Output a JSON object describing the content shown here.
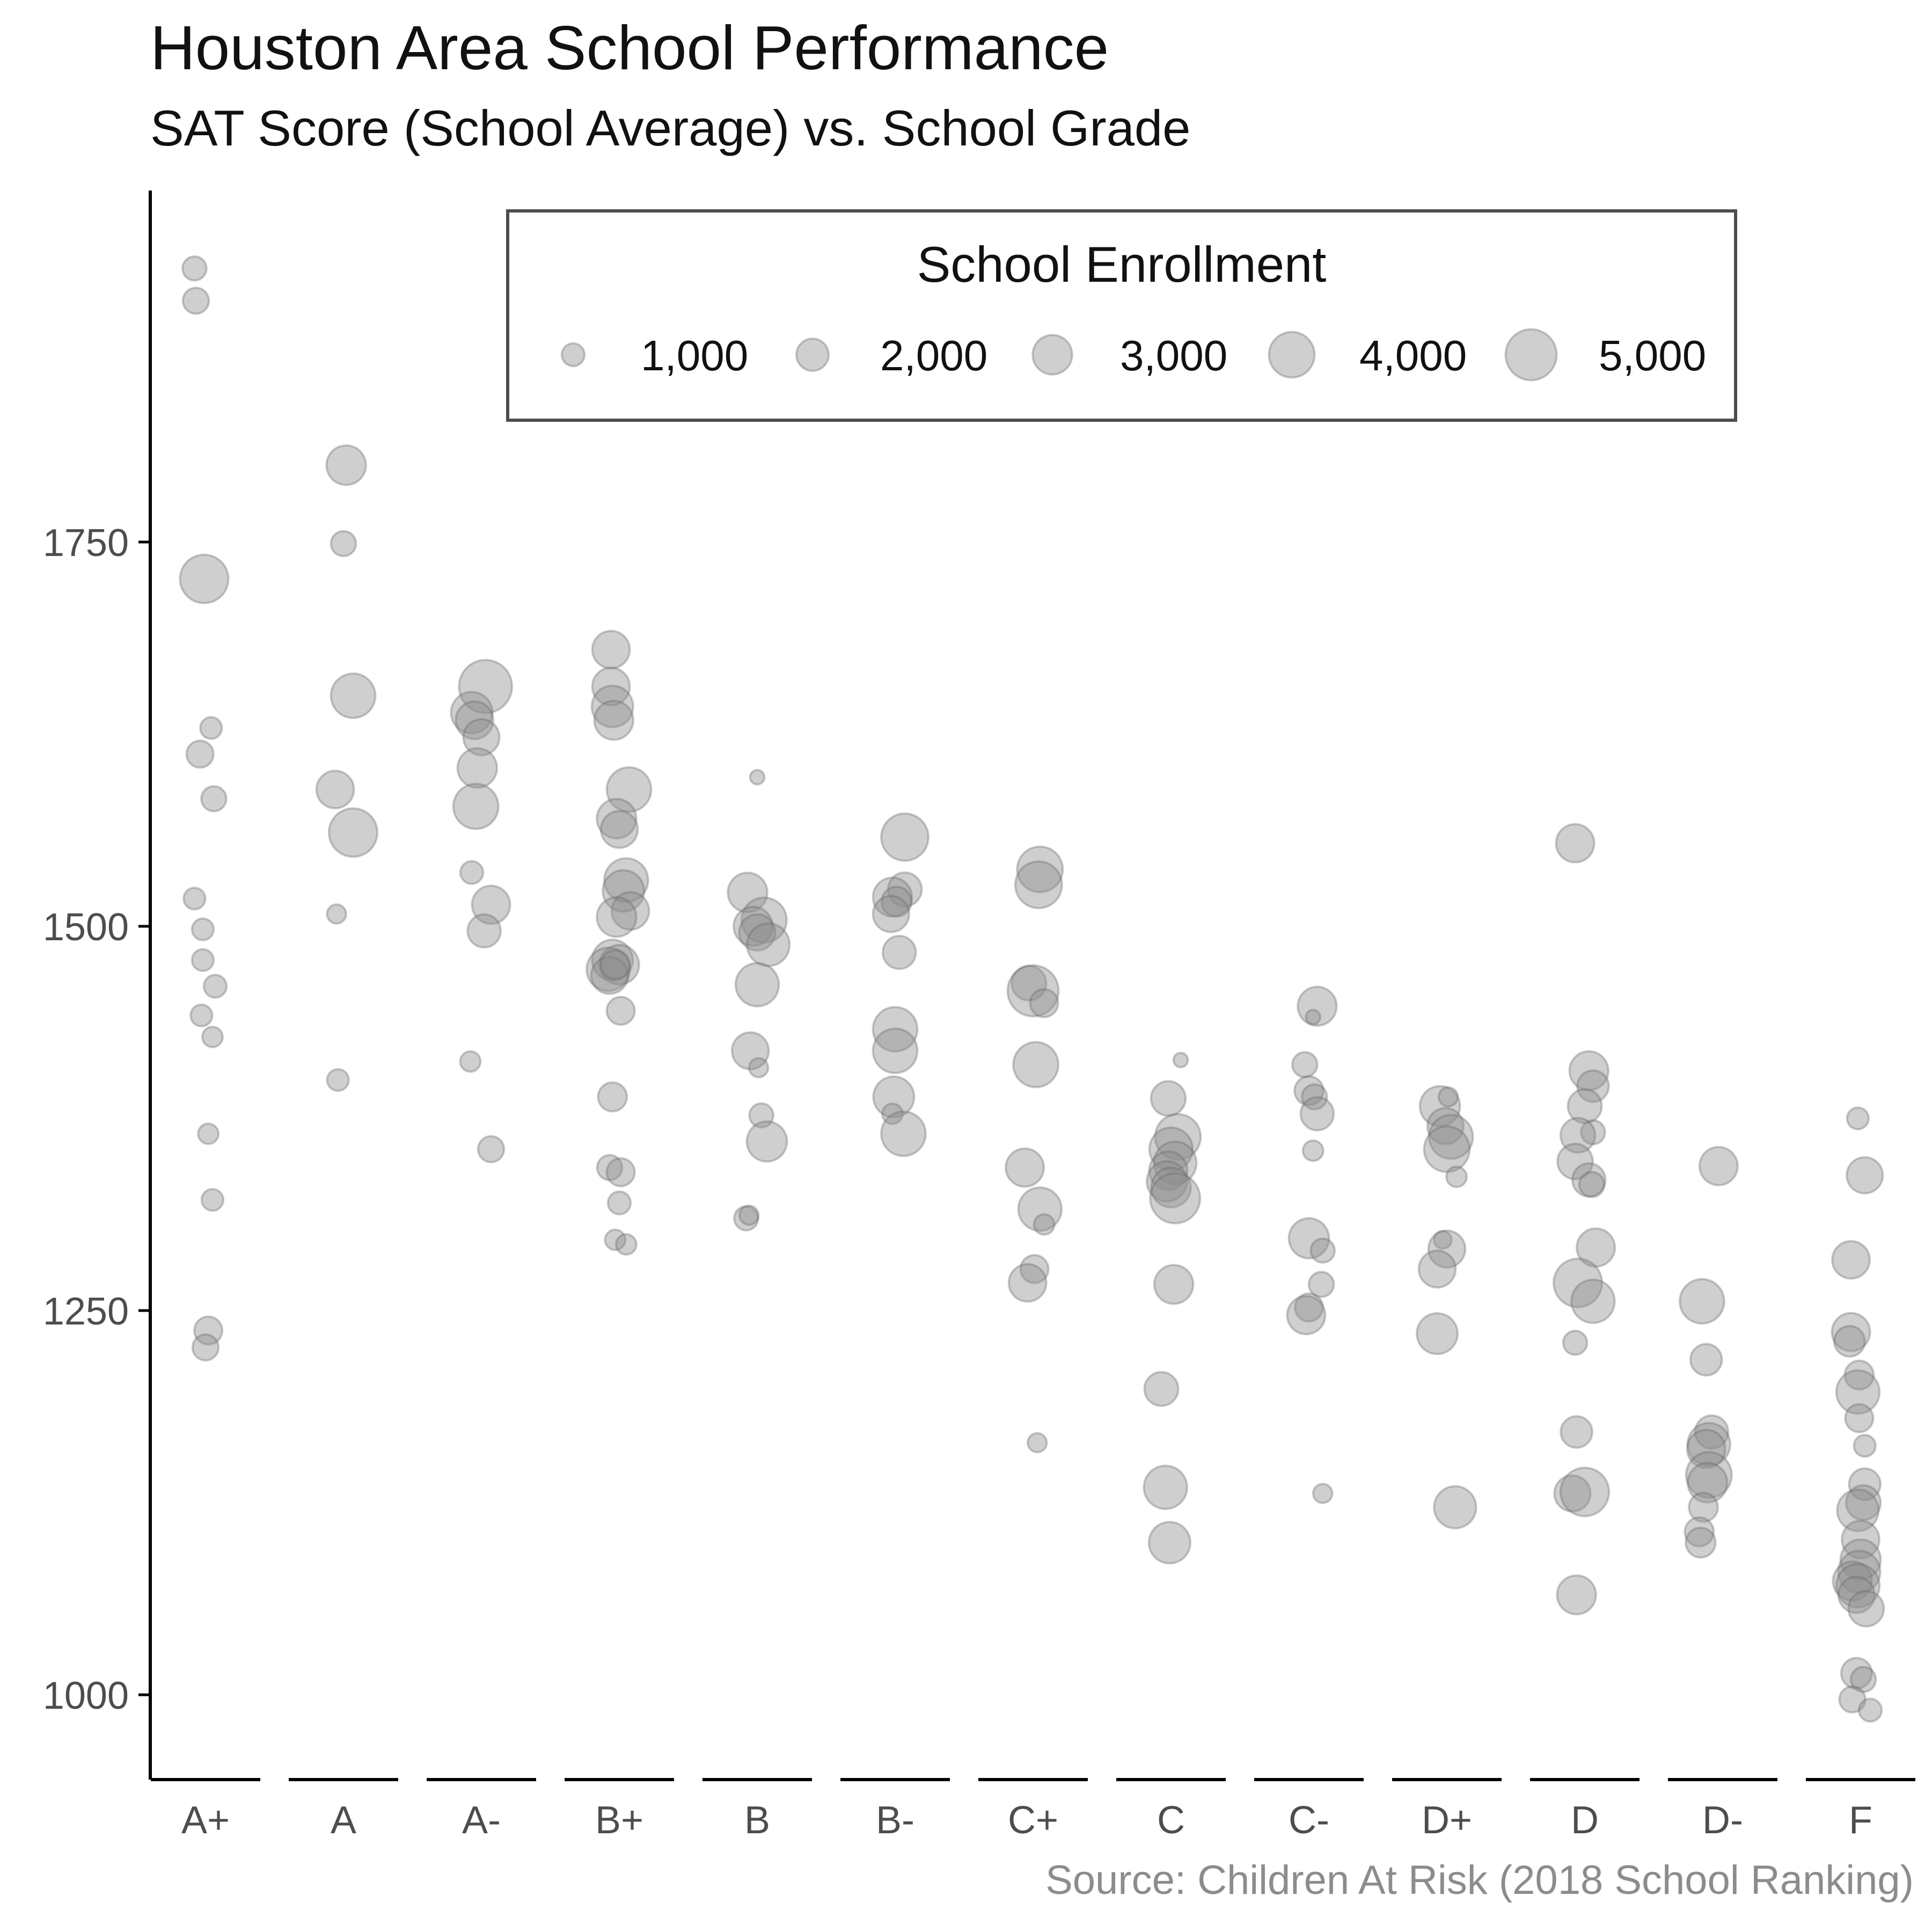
{
  "chart_data": {
    "type": "scatter",
    "title": "Houston Area School Performance",
    "subtitle": "SAT Score (School Average) vs. School Grade",
    "caption": "Source: Children At Risk (2018 School Ranking)",
    "xlabel": "",
    "ylabel": "",
    "categories": [
      "A+",
      "A",
      "A-",
      "B+",
      "B",
      "B-",
      "C+",
      "C",
      "C-",
      "D+",
      "D",
      "D-",
      "F"
    ],
    "y_ticks": [
      1000,
      1250,
      1500,
      1750
    ],
    "ylim": [
      948,
      1980
    ],
    "grid": false,
    "point_color": "#8c8c8c",
    "legend": {
      "title": "School Enrollment",
      "position": "top",
      "entries": [
        {
          "label": "1,000",
          "value": 1000
        },
        {
          "label": "2,000",
          "value": 2000
        },
        {
          "label": "3,000",
          "value": 3000
        },
        {
          "label": "4,000",
          "value": 4000
        },
        {
          "label": "5,000",
          "value": 5000
        }
      ]
    },
    "points": [
      {
        "grade": "A+",
        "x": -0.08,
        "y": 1928,
        "size": 1100
      },
      {
        "grade": "A+",
        "x": -0.07,
        "y": 1907,
        "size": 1300
      },
      {
        "grade": "A+",
        "x": -0.01,
        "y": 1726,
        "size": 4500
      },
      {
        "grade": "A+",
        "x": 0.04,
        "y": 1629,
        "size": 900
      },
      {
        "grade": "A+",
        "x": -0.04,
        "y": 1612,
        "size": 1400
      },
      {
        "grade": "A+",
        "x": 0.06,
        "y": 1583,
        "size": 1200
      },
      {
        "grade": "A+",
        "x": -0.08,
        "y": 1518,
        "size": 900
      },
      {
        "grade": "A+",
        "x": -0.02,
        "y": 1498,
        "size": 900
      },
      {
        "grade": "A+",
        "x": -0.02,
        "y": 1478,
        "size": 900
      },
      {
        "grade": "A+",
        "x": 0.07,
        "y": 1461,
        "size": 1000
      },
      {
        "grade": "A+",
        "x": -0.03,
        "y": 1442,
        "size": 900
      },
      {
        "grade": "A+",
        "x": 0.05,
        "y": 1428,
        "size": 800
      },
      {
        "grade": "A+",
        "x": 0.02,
        "y": 1365,
        "size": 800
      },
      {
        "grade": "A+",
        "x": 0.05,
        "y": 1322,
        "size": 900
      },
      {
        "grade": "A+",
        "x": 0.02,
        "y": 1237,
        "size": 1500
      },
      {
        "grade": "A+",
        "x": 0.0,
        "y": 1226,
        "size": 1300
      },
      {
        "grade": "A",
        "x": 0.02,
        "y": 1800,
        "size": 3000
      },
      {
        "grade": "A",
        "x": 0.0,
        "y": 1749,
        "size": 1200
      },
      {
        "grade": "A",
        "x": 0.07,
        "y": 1650,
        "size": 3800
      },
      {
        "grade": "A",
        "x": -0.06,
        "y": 1589,
        "size": 2700
      },
      {
        "grade": "A",
        "x": 0.07,
        "y": 1561,
        "size": 4500
      },
      {
        "grade": "A",
        "x": -0.05,
        "y": 1508,
        "size": 700
      },
      {
        "grade": "A",
        "x": -0.04,
        "y": 1400,
        "size": 900
      },
      {
        "grade": "A-",
        "x": 0.03,
        "y": 1656,
        "size": 5400
      },
      {
        "grade": "A-",
        "x": -0.07,
        "y": 1639,
        "size": 3300
      },
      {
        "grade": "A-",
        "x": -0.05,
        "y": 1634,
        "size": 2700
      },
      {
        "grade": "A-",
        "x": 0.0,
        "y": 1623,
        "size": 2500
      },
      {
        "grade": "A-",
        "x": -0.03,
        "y": 1603,
        "size": 3000
      },
      {
        "grade": "A-",
        "x": -0.04,
        "y": 1578,
        "size": 3900
      },
      {
        "grade": "A-",
        "x": -0.07,
        "y": 1535,
        "size": 1000
      },
      {
        "grade": "A-",
        "x": 0.07,
        "y": 1514,
        "size": 2800
      },
      {
        "grade": "A-",
        "x": 0.02,
        "y": 1497,
        "size": 2100
      },
      {
        "grade": "A-",
        "x": -0.08,
        "y": 1412,
        "size": 800
      },
      {
        "grade": "A-",
        "x": 0.07,
        "y": 1355,
        "size": 1300
      },
      {
        "grade": "B+",
        "x": -0.06,
        "y": 1680,
        "size": 2700
      },
      {
        "grade": "B+",
        "x": -0.06,
        "y": 1656,
        "size": 2700
      },
      {
        "grade": "B+",
        "x": -0.05,
        "y": 1643,
        "size": 3300
      },
      {
        "grade": "B+",
        "x": -0.04,
        "y": 1634,
        "size": 2900
      },
      {
        "grade": "B+",
        "x": 0.07,
        "y": 1589,
        "size": 3800
      },
      {
        "grade": "B+",
        "x": -0.02,
        "y": 1570,
        "size": 3000
      },
      {
        "grade": "B+",
        "x": 0.0,
        "y": 1563,
        "size": 2600
      },
      {
        "grade": "B+",
        "x": 0.05,
        "y": 1530,
        "size": 3700
      },
      {
        "grade": "B+",
        "x": 0.03,
        "y": 1523,
        "size": 3300
      },
      {
        "grade": "B+",
        "x": 0.08,
        "y": 1510,
        "size": 2700
      },
      {
        "grade": "B+",
        "x": -0.02,
        "y": 1506,
        "size": 3000
      },
      {
        "grade": "B+",
        "x": -0.05,
        "y": 1478,
        "size": 3200
      },
      {
        "grade": "B+",
        "x": 0.0,
        "y": 1475,
        "size": 3000
      },
      {
        "grade": "B+",
        "x": -0.08,
        "y": 1472,
        "size": 3600
      },
      {
        "grade": "B+",
        "x": -0.07,
        "y": 1468,
        "size": 2600
      },
      {
        "grade": "B+",
        "x": -0.03,
        "y": 1475,
        "size": 1600
      },
      {
        "grade": "B+",
        "x": 0.01,
        "y": 1445,
        "size": 1500
      },
      {
        "grade": "B+",
        "x": -0.05,
        "y": 1389,
        "size": 1600
      },
      {
        "grade": "B+",
        "x": -0.07,
        "y": 1343,
        "size": 1200
      },
      {
        "grade": "B+",
        "x": 0.01,
        "y": 1340,
        "size": 1500
      },
      {
        "grade": "B+",
        "x": 0.0,
        "y": 1320,
        "size": 1000
      },
      {
        "grade": "B+",
        "x": -0.03,
        "y": 1296,
        "size": 800
      },
      {
        "grade": "B+",
        "x": 0.05,
        "y": 1293,
        "size": 800
      },
      {
        "grade": "B",
        "x": 0.0,
        "y": 1597,
        "size": 400
      },
      {
        "grade": "B",
        "x": -0.07,
        "y": 1522,
        "size": 3000
      },
      {
        "grade": "B",
        "x": 0.05,
        "y": 1504,
        "size": 3900
      },
      {
        "grade": "B",
        "x": -0.03,
        "y": 1500,
        "size": 2900
      },
      {
        "grade": "B",
        "x": 0.0,
        "y": 1496,
        "size": 2500
      },
      {
        "grade": "B",
        "x": 0.08,
        "y": 1488,
        "size": 3500
      },
      {
        "grade": "B",
        "x": 0.0,
        "y": 1462,
        "size": 3600
      },
      {
        "grade": "B",
        "x": -0.05,
        "y": 1419,
        "size": 2600
      },
      {
        "grade": "B",
        "x": 0.01,
        "y": 1408,
        "size": 700
      },
      {
        "grade": "B",
        "x": 0.03,
        "y": 1377,
        "size": 1100
      },
      {
        "grade": "B",
        "x": 0.07,
        "y": 1360,
        "size": 3100
      },
      {
        "grade": "B",
        "x": -0.08,
        "y": 1310,
        "size": 1100
      },
      {
        "grade": "B",
        "x": -0.06,
        "y": 1312,
        "size": 700
      },
      {
        "grade": "B-",
        "x": 0.07,
        "y": 1558,
        "size": 4300
      },
      {
        "grade": "B-",
        "x": 0.07,
        "y": 1524,
        "size": 2200
      },
      {
        "grade": "B-",
        "x": -0.02,
        "y": 1519,
        "size": 2900
      },
      {
        "grade": "B-",
        "x": 0.01,
        "y": 1516,
        "size": 1700
      },
      {
        "grade": "B-",
        "x": -0.03,
        "y": 1508,
        "size": 2500
      },
      {
        "grade": "B-",
        "x": 0.03,
        "y": 1483,
        "size": 2100
      },
      {
        "grade": "B-",
        "x": 0.0,
        "y": 1433,
        "size": 3800
      },
      {
        "grade": "B-",
        "x": 0.0,
        "y": 1419,
        "size": 3800
      },
      {
        "grade": "B-",
        "x": -0.01,
        "y": 1389,
        "size": 3200
      },
      {
        "grade": "B-",
        "x": -0.02,
        "y": 1378,
        "size": 800
      },
      {
        "grade": "B-",
        "x": 0.06,
        "y": 1365,
        "size": 3800
      },
      {
        "grade": "C+",
        "x": 0.05,
        "y": 1537,
        "size": 4000
      },
      {
        "grade": "C+",
        "x": 0.04,
        "y": 1527,
        "size": 4200
      },
      {
        "grade": "C+",
        "x": -0.03,
        "y": 1463,
        "size": 2300
      },
      {
        "grade": "C+",
        "x": 0.0,
        "y": 1458,
        "size": 5000
      },
      {
        "grade": "C+",
        "x": 0.08,
        "y": 1450,
        "size": 1500
      },
      {
        "grade": "C+",
        "x": 0.02,
        "y": 1410,
        "size": 3900
      },
      {
        "grade": "C+",
        "x": -0.06,
        "y": 1343,
        "size": 2800
      },
      {
        "grade": "C+",
        "x": 0.05,
        "y": 1316,
        "size": 3600
      },
      {
        "grade": "C+",
        "x": 0.08,
        "y": 1306,
        "size": 800
      },
      {
        "grade": "C+",
        "x": 0.01,
        "y": 1277,
        "size": 1500
      },
      {
        "grade": "C+",
        "x": -0.04,
        "y": 1268,
        "size": 2700
      },
      {
        "grade": "C+",
        "x": 0.03,
        "y": 1164,
        "size": 700
      },
      {
        "grade": "C",
        "x": 0.07,
        "y": 1413,
        "size": 400
      },
      {
        "grade": "C",
        "x": -0.02,
        "y": 1388,
        "size": 2300
      },
      {
        "grade": "C",
        "x": 0.05,
        "y": 1363,
        "size": 4000
      },
      {
        "grade": "C",
        "x": 0.0,
        "y": 1355,
        "size": 3600
      },
      {
        "grade": "C",
        "x": 0.03,
        "y": 1346,
        "size": 3500
      },
      {
        "grade": "C",
        "x": -0.02,
        "y": 1341,
        "size": 2800
      },
      {
        "grade": "C",
        "x": -0.03,
        "y": 1334,
        "size": 3100
      },
      {
        "grade": "C",
        "x": 0.0,
        "y": 1330,
        "size": 3000
      },
      {
        "grade": "C",
        "x": 0.03,
        "y": 1323,
        "size": 4800
      },
      {
        "grade": "C",
        "x": 0.02,
        "y": 1267,
        "size": 2900
      },
      {
        "grade": "C",
        "x": -0.07,
        "y": 1199,
        "size": 2200
      },
      {
        "grade": "C",
        "x": -0.04,
        "y": 1135,
        "size": 3600
      },
      {
        "grade": "C",
        "x": -0.01,
        "y": 1099,
        "size": 3300
      },
      {
        "grade": "C-",
        "x": 0.06,
        "y": 1448,
        "size": 2900
      },
      {
        "grade": "C-",
        "x": 0.03,
        "y": 1441,
        "size": 400
      },
      {
        "grade": "C-",
        "x": -0.03,
        "y": 1410,
        "size": 1200
      },
      {
        "grade": "C-",
        "x": 0.0,
        "y": 1393,
        "size": 1600
      },
      {
        "grade": "C-",
        "x": 0.04,
        "y": 1389,
        "size": 1200
      },
      {
        "grade": "C-",
        "x": 0.06,
        "y": 1378,
        "size": 2100
      },
      {
        "grade": "C-",
        "x": 0.03,
        "y": 1354,
        "size": 800
      },
      {
        "grade": "C-",
        "x": 0.0,
        "y": 1297,
        "size": 3100
      },
      {
        "grade": "C-",
        "x": 0.1,
        "y": 1289,
        "size": 1100
      },
      {
        "grade": "C-",
        "x": 0.09,
        "y": 1267,
        "size": 1200
      },
      {
        "grade": "C-",
        "x": 0.0,
        "y": 1252,
        "size": 1500
      },
      {
        "grade": "C-",
        "x": -0.02,
        "y": 1247,
        "size": 2800
      },
      {
        "grade": "C-",
        "x": 0.1,
        "y": 1131,
        "size": 700
      },
      {
        "grade": "D+",
        "x": -0.05,
        "y": 1383,
        "size": 3100
      },
      {
        "grade": "D+",
        "x": 0.01,
        "y": 1389,
        "size": 700
      },
      {
        "grade": "D+",
        "x": -0.01,
        "y": 1370,
        "size": 2500
      },
      {
        "grade": "D+",
        "x": 0.03,
        "y": 1363,
        "size": 3700
      },
      {
        "grade": "D+",
        "x": 0.0,
        "y": 1355,
        "size": 4000
      },
      {
        "grade": "D+",
        "x": 0.07,
        "y": 1337,
        "size": 800
      },
      {
        "grade": "D+",
        "x": -0.03,
        "y": 1296,
        "size": 600
      },
      {
        "grade": "D+",
        "x": 0.0,
        "y": 1290,
        "size": 2600
      },
      {
        "grade": "D+",
        "x": -0.07,
        "y": 1277,
        "size": 2600
      },
      {
        "grade": "D+",
        "x": -0.07,
        "y": 1235,
        "size": 3200
      },
      {
        "grade": "D+",
        "x": 0.06,
        "y": 1122,
        "size": 3400
      },
      {
        "grade": "D",
        "x": -0.07,
        "y": 1554,
        "size": 2800
      },
      {
        "grade": "D",
        "x": 0.03,
        "y": 1406,
        "size": 2900
      },
      {
        "grade": "D",
        "x": 0.06,
        "y": 1396,
        "size": 1900
      },
      {
        "grade": "D",
        "x": 0.0,
        "y": 1383,
        "size": 2200
      },
      {
        "grade": "D",
        "x": 0.06,
        "y": 1366,
        "size": 1100
      },
      {
        "grade": "D",
        "x": -0.05,
        "y": 1364,
        "size": 2300
      },
      {
        "grade": "D",
        "x": -0.07,
        "y": 1347,
        "size": 2400
      },
      {
        "grade": "D",
        "x": 0.03,
        "y": 1335,
        "size": 2100
      },
      {
        "grade": "D",
        "x": 0.05,
        "y": 1332,
        "size": 1200
      },
      {
        "grade": "D",
        "x": 0.08,
        "y": 1291,
        "size": 2800
      },
      {
        "grade": "D",
        "x": -0.05,
        "y": 1268,
        "size": 4500
      },
      {
        "grade": "D",
        "x": 0.06,
        "y": 1256,
        "size": 3600
      },
      {
        "grade": "D",
        "x": -0.07,
        "y": 1229,
        "size": 1100
      },
      {
        "grade": "D",
        "x": -0.06,
        "y": 1171,
        "size": 1900
      },
      {
        "grade": "D",
        "x": -0.09,
        "y": 1131,
        "size": 2500
      },
      {
        "grade": "D",
        "x": 0.0,
        "y": 1132,
        "size": 4500
      },
      {
        "grade": "D",
        "x": -0.06,
        "y": 1065,
        "size": 2900
      },
      {
        "grade": "D-",
        "x": -0.03,
        "y": 1344,
        "size": 2800
      },
      {
        "grade": "D-",
        "x": -0.15,
        "y": 1256,
        "size": 3800
      },
      {
        "grade": "D-",
        "x": -0.12,
        "y": 1218,
        "size": 1900
      },
      {
        "grade": "D-",
        "x": -0.08,
        "y": 1171,
        "size": 2100
      },
      {
        "grade": "D-",
        "x": -0.1,
        "y": 1163,
        "size": 3500
      },
      {
        "grade": "D-",
        "x": -0.12,
        "y": 1160,
        "size": 2800
      },
      {
        "grade": "D-",
        "x": -0.1,
        "y": 1143,
        "size": 4000
      },
      {
        "grade": "D-",
        "x": -0.11,
        "y": 1138,
        "size": 3000
      },
      {
        "grade": "D-",
        "x": -0.14,
        "y": 1122,
        "size": 1600
      },
      {
        "grade": "D-",
        "x": -0.17,
        "y": 1106,
        "size": 1600
      },
      {
        "grade": "D-",
        "x": -0.16,
        "y": 1099,
        "size": 1700
      },
      {
        "grade": "F",
        "x": -0.02,
        "y": 1375,
        "size": 900
      },
      {
        "grade": "F",
        "x": 0.03,
        "y": 1338,
        "size": 2500
      },
      {
        "grade": "F",
        "x": -0.07,
        "y": 1283,
        "size": 2700
      },
      {
        "grade": "F",
        "x": -0.07,
        "y": 1236,
        "size": 2800
      },
      {
        "grade": "F",
        "x": -0.08,
        "y": 1230,
        "size": 1800
      },
      {
        "grade": "F",
        "x": -0.01,
        "y": 1208,
        "size": 1600
      },
      {
        "grade": "F",
        "x": -0.02,
        "y": 1197,
        "size": 3600
      },
      {
        "grade": "F",
        "x": -0.01,
        "y": 1180,
        "size": 1500
      },
      {
        "grade": "F",
        "x": 0.03,
        "y": 1162,
        "size": 900
      },
      {
        "grade": "F",
        "x": 0.03,
        "y": 1137,
        "size": 1900
      },
      {
        "grade": "F",
        "x": 0.02,
        "y": 1125,
        "size": 2300
      },
      {
        "grade": "F",
        "x": -0.02,
        "y": 1120,
        "size": 3300
      },
      {
        "grade": "F",
        "x": 0.0,
        "y": 1101,
        "size": 2700
      },
      {
        "grade": "F",
        "x": 0.0,
        "y": 1088,
        "size": 3100
      },
      {
        "grade": "F",
        "x": -0.01,
        "y": 1080,
        "size": 3400
      },
      {
        "grade": "F",
        "x": -0.06,
        "y": 1074,
        "size": 2900
      },
      {
        "grade": "F",
        "x": -0.02,
        "y": 1071,
        "size": 3600
      },
      {
        "grade": "F",
        "x": -0.03,
        "y": 1065,
        "size": 2500
      },
      {
        "grade": "F",
        "x": 0.04,
        "y": 1056,
        "size": 2400
      },
      {
        "grade": "F",
        "x": -0.03,
        "y": 1014,
        "size": 1800
      },
      {
        "grade": "F",
        "x": 0.02,
        "y": 1010,
        "size": 1200
      },
      {
        "grade": "F",
        "x": -0.06,
        "y": 997,
        "size": 1300
      },
      {
        "grade": "F",
        "x": 0.07,
        "y": 990,
        "size": 1000
      }
    ]
  }
}
